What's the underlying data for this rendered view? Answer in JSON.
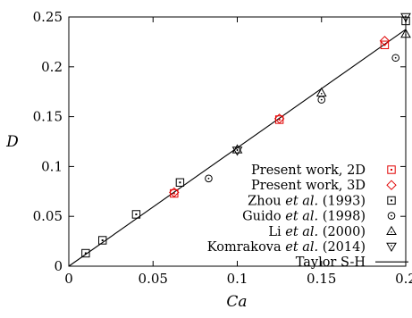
{
  "chart_data": {
    "type": "scatter",
    "xlabel": "Ca",
    "ylabel": "D",
    "xlim": [
      0,
      0.2
    ],
    "ylim": [
      0,
      0.25
    ],
    "xticks": [
      "0",
      "0.05",
      "0.1",
      "0.15",
      "0.2"
    ],
    "yticks": [
      "0",
      "0.05",
      "0.1",
      "0.15",
      "0.2",
      "0.25"
    ],
    "grid": false,
    "legend_position": "bottom-right",
    "series": [
      {
        "name": "Present work, 2D",
        "marker": "square",
        "color": "#e00000",
        "x": [
          0.0625,
          0.125,
          0.1875
        ],
        "y": [
          0.073,
          0.147,
          0.222
        ]
      },
      {
        "name": "Present work, 3D",
        "marker": "diamond",
        "color": "#e00000",
        "x": [
          0.0625,
          0.125,
          0.1875
        ],
        "y": [
          0.074,
          0.148,
          0.226
        ]
      },
      {
        "name": "Zhou et al. (1993)",
        "marker": "square",
        "color": "#000000",
        "x": [
          0.01,
          0.02,
          0.04,
          0.066,
          0.2
        ],
        "y": [
          0.013,
          0.026,
          0.052,
          0.084,
          0.246
        ]
      },
      {
        "name": "Guido et al. (1998)",
        "marker": "circle",
        "color": "#000000",
        "x": [
          0.083,
          0.15,
          0.194
        ],
        "y": [
          0.088,
          0.167,
          0.209
        ]
      },
      {
        "name": "Li et al. (2000)",
        "marker": "triangle-up",
        "color": "#000000",
        "x": [
          0.1,
          0.15,
          0.2
        ],
        "y": [
          0.117,
          0.174,
          0.233
        ]
      },
      {
        "name": "Komrakova et al. (2014)",
        "marker": "triangle-down",
        "color": "#000000",
        "x": [
          0.1,
          0.2
        ],
        "y": [
          0.116,
          0.25
        ]
      },
      {
        "name": "Taylor S-H",
        "marker": "line",
        "color": "#000000",
        "x": [
          0,
          0.2
        ],
        "y": [
          0,
          0.2375
        ]
      }
    ]
  },
  "legend": {
    "entries": [
      {
        "prefix": "Present work, 2D",
        "italic": "",
        "suffix": ""
      },
      {
        "prefix": "Present work, 3D",
        "italic": "",
        "suffix": ""
      },
      {
        "prefix": "Zhou ",
        "italic": "et al.",
        "suffix": " (1993)"
      },
      {
        "prefix": "Guido ",
        "italic": "et al.",
        "suffix": " (1998)"
      },
      {
        "prefix": "Li ",
        "italic": "et al.",
        "suffix": " (2000)"
      },
      {
        "prefix": "Komrakova ",
        "italic": "et al.",
        "suffix": " (2014)"
      },
      {
        "prefix": "Taylor S-H",
        "italic": "",
        "suffix": ""
      }
    ]
  }
}
